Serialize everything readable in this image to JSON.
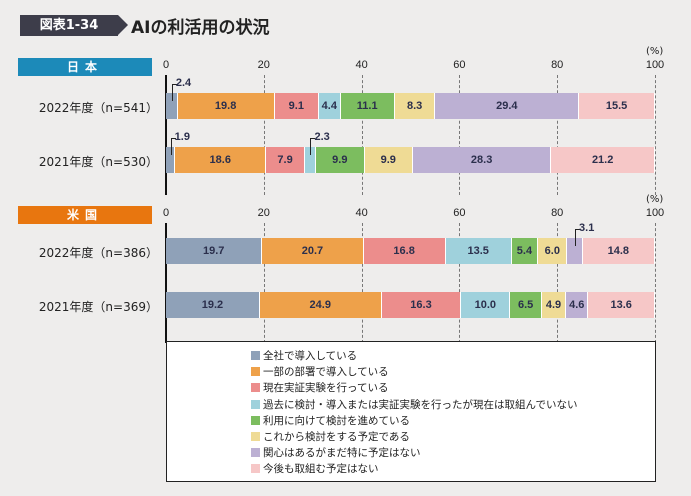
{
  "header": {
    "figure_tag": "図表1-34",
    "title": "AIの利活用の状況"
  },
  "chart_data": {
    "type": "bar",
    "orientation": "horizontal-stacked-100",
    "unit": "(%)",
    "xlim": [
      0,
      100
    ],
    "xticks": [
      "0",
      "20",
      "40",
      "60",
      "80",
      "100"
    ],
    "grid": true,
    "legend_position": "bottom",
    "series_names": [
      "全社で導入している",
      "一部の部署で導入している",
      "現在実証実験を行っている",
      "過去に検討・導入または実証実験を行ったが現在は取組んでいない",
      "利用に向けて検討を進めている",
      "これから検討をする予定である",
      "関心はあるがまだ特に予定はない",
      "今後も取組む予定はない"
    ],
    "colors": [
      "#8fa1b8",
      "#eea14a",
      "#ec8d8c",
      "#9fd1dc",
      "#7cbd5f",
      "#efdb95",
      "#bcb0d3",
      "#f6c7c7"
    ],
    "groups": [
      {
        "name": "日本",
        "color": "#1c8ab9",
        "rows": [
          {
            "label": "2022年度（n=541）",
            "values": [
              2.4,
              19.8,
              9.1,
              4.4,
              11.1,
              8.3,
              29.4,
              15.5
            ]
          },
          {
            "label": "2021年度（n=530）",
            "values": [
              1.9,
              18.6,
              7.9,
              2.3,
              9.9,
              9.9,
              28.3,
              21.2
            ]
          }
        ]
      },
      {
        "name": "米国",
        "color": "#e8760f",
        "rows": [
          {
            "label": "2022年度（n=386）",
            "values": [
              19.7,
              20.7,
              16.8,
              13.5,
              5.4,
              6.0,
              3.1,
              14.8
            ]
          },
          {
            "label": "2021年度（n=369）",
            "values": [
              19.2,
              24.9,
              16.3,
              10.0,
              6.5,
              4.9,
              4.6,
              13.6
            ]
          }
        ]
      }
    ]
  }
}
